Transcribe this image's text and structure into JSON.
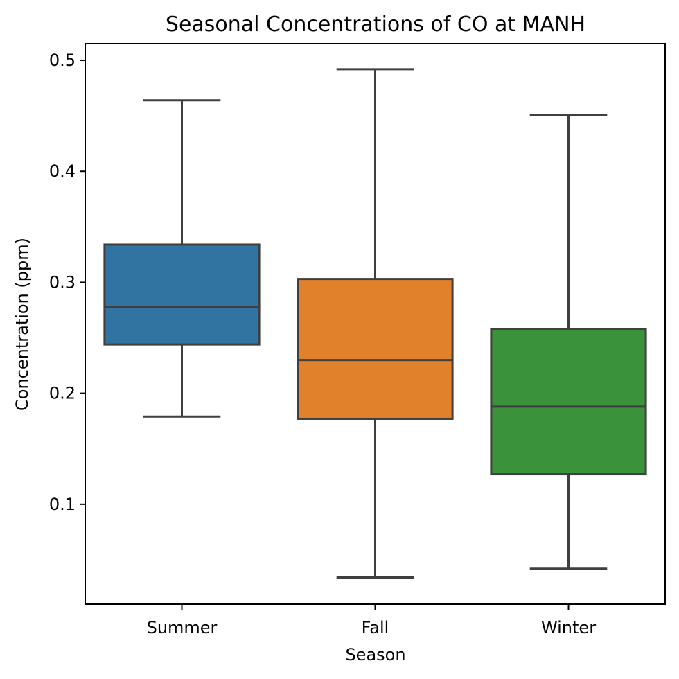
{
  "chart_data": {
    "type": "box",
    "title": "Seasonal Concentrations of CO at MANH",
    "xlabel": "Season",
    "ylabel": "Concentration (ppm)",
    "ylim": [
      0.01,
      0.515
    ],
    "yticks": [
      "0.1",
      "0.2",
      "0.3",
      "0.4",
      "0.5"
    ],
    "grid": false,
    "legend": "none",
    "categories": [
      "Summer",
      "Fall",
      "Winter"
    ],
    "boxes": [
      {
        "category": "Summer",
        "whisker_low": 0.179,
        "q1": 0.244,
        "median": 0.278,
        "q3": 0.334,
        "whisker_high": 0.464,
        "color": "#3274a1"
      },
      {
        "category": "Fall",
        "whisker_low": 0.034,
        "q1": 0.177,
        "median": 0.23,
        "q3": 0.303,
        "whisker_high": 0.492,
        "color": "#e1812c"
      },
      {
        "category": "Winter",
        "whisker_low": 0.042,
        "q1": 0.127,
        "median": 0.188,
        "q3": 0.258,
        "whisker_high": 0.451,
        "color": "#3a923a"
      }
    ]
  }
}
